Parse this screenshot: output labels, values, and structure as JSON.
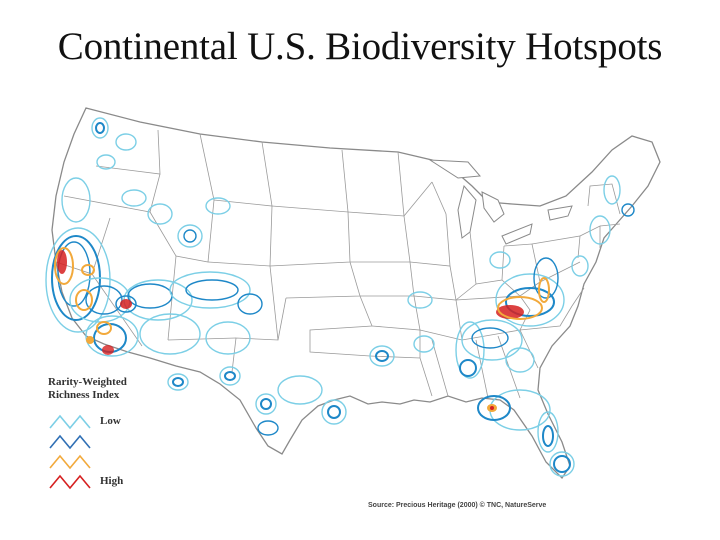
{
  "slide": {
    "title": "Continental U.S. Biodiversity Hotspots"
  },
  "legend": {
    "title_line1": "Rarity-Weighted",
    "title_line2": "Richness Index",
    "low_label": "Low",
    "high_label": "High",
    "scale_colors": [
      "#7ccfe6",
      "#2f6fb5",
      "#f2a93b",
      "#d62020"
    ]
  },
  "source": {
    "text": "Source: Precious Heritage (2000) © TNC, NatureServe"
  },
  "map": {
    "region": "Continental United States",
    "colors": {
      "low": "#7ccfe6",
      "mid": "#1e88c8",
      "orange": "#f2a93b",
      "high": "#d62020",
      "state_borders": "#9a9a9a"
    }
  }
}
